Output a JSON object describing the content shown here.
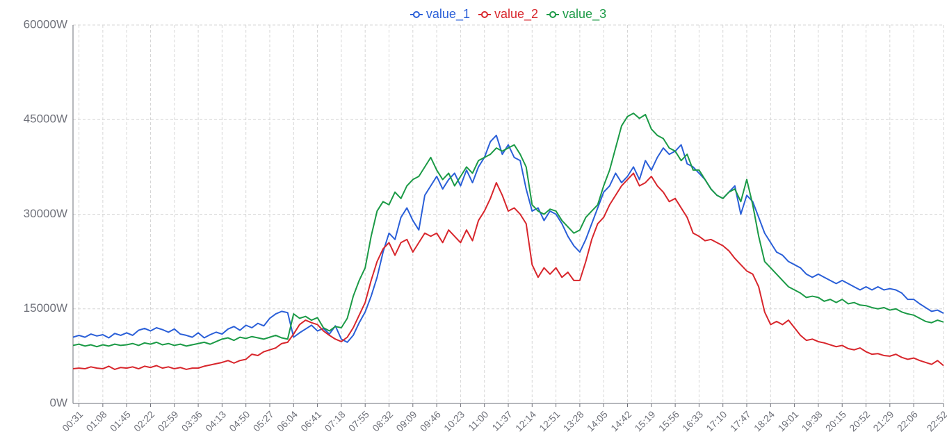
{
  "chart_data": {
    "type": "line",
    "categories": [
      null,
      "00:31",
      null,
      null,
      null,
      "01:08",
      null,
      null,
      null,
      "01:45",
      null,
      null,
      null,
      "02:22",
      null,
      null,
      null,
      "02:59",
      null,
      null,
      null,
      "03:36",
      null,
      null,
      null,
      "04:13",
      null,
      null,
      null,
      "04:50",
      null,
      null,
      null,
      "05:27",
      null,
      null,
      null,
      "06:04",
      null,
      null,
      null,
      "06:41",
      null,
      null,
      null,
      "07:18",
      null,
      null,
      null,
      "07:55",
      null,
      null,
      null,
      "08:32",
      null,
      null,
      null,
      "09:09",
      null,
      null,
      null,
      "09:46",
      null,
      null,
      null,
      "10:23",
      null,
      null,
      null,
      "11:00",
      null,
      null,
      null,
      "11:37",
      null,
      null,
      null,
      "12:14",
      null,
      null,
      null,
      "12:51",
      null,
      null,
      null,
      "13:28",
      null,
      null,
      null,
      "14:05",
      null,
      null,
      null,
      "14:42",
      null,
      null,
      null,
      "15:19",
      null,
      null,
      null,
      "15:56",
      null,
      null,
      null,
      "16:33",
      null,
      null,
      null,
      "17:10",
      null,
      null,
      null,
      "17:47",
      null,
      null,
      null,
      "18:24",
      null,
      null,
      null,
      "19:01",
      null,
      null,
      null,
      "19:38",
      null,
      null,
      null,
      "20:15",
      null,
      null,
      null,
      "20:52",
      null,
      null,
      null,
      "21:29",
      null,
      null,
      null,
      "22:06",
      null,
      null,
      null,
      null,
      "22:52"
    ],
    "series": [
      {
        "name": "value_1",
        "color": "#2a5fd8",
        "values": [
          10500,
          10800,
          10500,
          11000,
          10700,
          10900,
          10400,
          11100,
          10800,
          11200,
          10800,
          11600,
          11900,
          11500,
          12000,
          11700,
          11300,
          11800,
          11000,
          10800,
          10500,
          11200,
          10400,
          10900,
          11300,
          11000,
          11800,
          12200,
          11600,
          12400,
          12000,
          12700,
          12300,
          13500,
          14200,
          14600,
          14400,
          10500,
          11200,
          11800,
          12400,
          11500,
          11900,
          11000,
          12300,
          10200,
          9700,
          10800,
          12800,
          14500,
          17000,
          20000,
          24000,
          27000,
          26000,
          29500,
          31000,
          29000,
          27500,
          33000,
          34500,
          36000,
          34000,
          35500,
          36500,
          34500,
          37000,
          35000,
          37500,
          39000,
          41500,
          42500,
          39500,
          41000,
          39000,
          38500,
          34000,
          30500,
          31000,
          29000,
          30500,
          30000,
          28500,
          26500,
          25000,
          24000,
          26000,
          28500,
          31000,
          33500,
          34500,
          36500,
          35000,
          36000,
          37500,
          35500,
          38500,
          37000,
          39000,
          40500,
          39500,
          40000,
          41000,
          38000,
          37500,
          36500,
          35500,
          34000,
          33000,
          32500,
          33500,
          34500,
          30000,
          33000,
          32000,
          29500,
          27000,
          25500,
          24000,
          23500,
          22500,
          22000,
          21500,
          20500,
          20000,
          20500,
          20000,
          19500,
          19000,
          19500,
          19000,
          18500,
          18000,
          18500,
          18000,
          18500,
          18000,
          18200,
          18000,
          17500,
          16500,
          16500,
          15800,
          15200,
          14600,
          14800,
          14300
        ]
      },
      {
        "name": "value_2",
        "color": "#d8262c",
        "values": [
          5500,
          5600,
          5500,
          5800,
          5600,
          5500,
          5900,
          5400,
          5700,
          5600,
          5800,
          5500,
          5900,
          5700,
          6000,
          5600,
          5800,
          5500,
          5700,
          5400,
          5600,
          5600,
          5900,
          6100,
          6300,
          6500,
          6800,
          6400,
          6800,
          7000,
          7800,
          7600,
          8200,
          8500,
          8800,
          9500,
          9700,
          11000,
          12500,
          13200,
          12800,
          12500,
          11500,
          10800,
          10200,
          9800,
          10500,
          12000,
          14000,
          16000,
          19500,
          22500,
          24500,
          25500,
          23500,
          25500,
          26000,
          24000,
          25500,
          27000,
          26500,
          27000,
          25500,
          27500,
          26500,
          25500,
          27500,
          25800,
          29000,
          30500,
          32500,
          35000,
          33000,
          30500,
          31000,
          30000,
          28500,
          22000,
          20000,
          21500,
          20500,
          21500,
          20000,
          20800,
          19500,
          19500,
          22500,
          26000,
          28500,
          29500,
          31500,
          33000,
          34500,
          35500,
          36500,
          34500,
          35000,
          36000,
          34500,
          33500,
          32000,
          32500,
          31000,
          29500,
          27000,
          26500,
          25800,
          26000,
          25500,
          25000,
          24200,
          23000,
          22000,
          21000,
          20500,
          18500,
          14500,
          12500,
          13000,
          12500,
          13200,
          12000,
          10800,
          10000,
          10200,
          9800,
          9600,
          9300,
          9000,
          9200,
          8700,
          8500,
          8800,
          8200,
          7800,
          7900,
          7600,
          7500,
          7800,
          7300,
          7000,
          7200,
          6800,
          6500,
          6200,
          6800,
          6000
        ]
      },
      {
        "name": "value_3",
        "color": "#1b9a46",
        "values": [
          9200,
          9400,
          9100,
          9300,
          9000,
          9300,
          9100,
          9400,
          9200,
          9300,
          9500,
          9200,
          9600,
          9400,
          9700,
          9300,
          9500,
          9200,
          9400,
          9100,
          9300,
          9500,
          9700,
          9400,
          9800,
          10200,
          10400,
          10000,
          10500,
          10300,
          10600,
          10400,
          10200,
          10500,
          10800,
          10400,
          10200,
          14200,
          13500,
          13800,
          13200,
          13600,
          12000,
          11500,
          12200,
          12000,
          13500,
          17000,
          19500,
          21500,
          26500,
          30500,
          32000,
          31500,
          33500,
          32500,
          34500,
          35500,
          36000,
          37500,
          39000,
          37000,
          35500,
          36500,
          34500,
          36000,
          37500,
          36500,
          38500,
          39000,
          39500,
          40500,
          40000,
          40500,
          41000,
          39500,
          37500,
          31500,
          30500,
          30000,
          30800,
          30500,
          29000,
          28000,
          27000,
          27500,
          29500,
          30500,
          31500,
          34500,
          37000,
          40500,
          44000,
          45500,
          46000,
          45200,
          45800,
          43500,
          42500,
          42000,
          40500,
          40000,
          38500,
          39500,
          37000,
          37000,
          35500,
          34000,
          33000,
          32500,
          33500,
          34000,
          32000,
          35500,
          31500,
          26500,
          22500,
          21500,
          20500,
          19500,
          18500,
          18000,
          17500,
          16800,
          17000,
          16800,
          16200,
          16500,
          16000,
          16500,
          15800,
          16000,
          15600,
          15500,
          15200,
          15000,
          15200,
          14800,
          15000,
          14500,
          14200,
          14000,
          13500,
          13000,
          12800,
          13200,
          12900
        ]
      }
    ],
    "ylim": [
      0,
      60000
    ],
    "yticks": [
      {
        "value": 0,
        "label": "0W"
      },
      {
        "value": 15000,
        "label": "15000W"
      },
      {
        "value": 30000,
        "label": "30000W"
      },
      {
        "value": 45000,
        "label": "45000W"
      },
      {
        "value": 60000,
        "label": "60000W"
      }
    ],
    "grid": true,
    "legend": "top"
  }
}
